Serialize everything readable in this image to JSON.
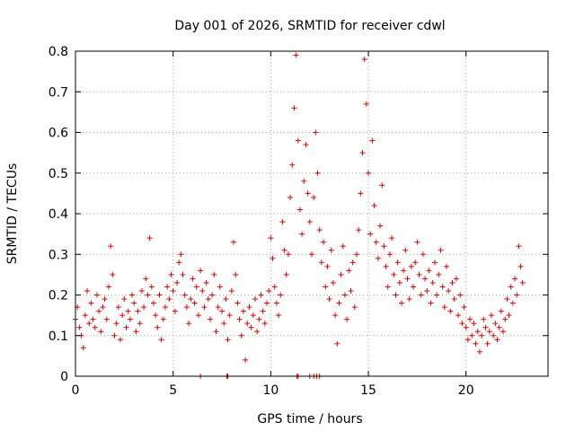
{
  "chart_data": {
    "type": "scatter",
    "title": "Day 001 of 2026, SRMTID for receiver cdwl",
    "xlabel": "GPS time / hours",
    "ylabel": "SRMTID / TECUs",
    "xlim": [
      0,
      24.2
    ],
    "ylim": [
      0,
      0.8
    ],
    "x_ticks": [
      0,
      5,
      10,
      15,
      20
    ],
    "x_tick_labels": [
      "0",
      "5",
      "10",
      "15",
      "20"
    ],
    "y_ticks": [
      0,
      0.1,
      0.2,
      0.3,
      0.4,
      0.5,
      0.6,
      0.7,
      0.8
    ],
    "y_tick_labels": [
      "0",
      "0.1",
      "0.2",
      "0.3",
      "0.4",
      "0.5",
      "0.6",
      "0.7",
      "0.8"
    ],
    "grid": true,
    "marker": "+",
    "color": "#e00000",
    "series": [
      {
        "name": "SRMTID",
        "points": [
          [
            0.0,
            0.14
          ],
          [
            0.1,
            0.17
          ],
          [
            0.2,
            0.12
          ],
          [
            0.3,
            0.1
          ],
          [
            0.4,
            0.07
          ],
          [
            0.5,
            0.15
          ],
          [
            0.6,
            0.21
          ],
          [
            0.7,
            0.13
          ],
          [
            0.8,
            0.18
          ],
          [
            0.9,
            0.14
          ],
          [
            1.0,
            0.12
          ],
          [
            1.1,
            0.2
          ],
          [
            1.2,
            0.16
          ],
          [
            1.3,
            0.11
          ],
          [
            1.4,
            0.17
          ],
          [
            1.5,
            0.19
          ],
          [
            1.6,
            0.14
          ],
          [
            1.7,
            0.22
          ],
          [
            1.8,
            0.32
          ],
          [
            1.9,
            0.25
          ],
          [
            2.0,
            0.1
          ],
          [
            2.1,
            0.13
          ],
          [
            2.2,
            0.17
          ],
          [
            2.3,
            0.09
          ],
          [
            2.4,
            0.15
          ],
          [
            2.5,
            0.19
          ],
          [
            2.6,
            0.12
          ],
          [
            2.7,
            0.16
          ],
          [
            2.8,
            0.14
          ],
          [
            2.9,
            0.2
          ],
          [
            3.0,
            0.18
          ],
          [
            3.1,
            0.11
          ],
          [
            3.2,
            0.16
          ],
          [
            3.3,
            0.13
          ],
          [
            3.4,
            0.21
          ],
          [
            3.5,
            0.17
          ],
          [
            3.6,
            0.24
          ],
          [
            3.7,
            0.2
          ],
          [
            3.8,
            0.34
          ],
          [
            3.9,
            0.22
          ],
          [
            4.0,
            0.18
          ],
          [
            4.1,
            0.15
          ],
          [
            4.2,
            0.12
          ],
          [
            4.3,
            0.2
          ],
          [
            4.4,
            0.09
          ],
          [
            4.5,
            0.14
          ],
          [
            4.6,
            0.17
          ],
          [
            4.7,
            0.22
          ],
          [
            4.8,
            0.19
          ],
          [
            4.9,
            0.25
          ],
          [
            5.0,
            0.21
          ],
          [
            5.1,
            0.16
          ],
          [
            5.2,
            0.23
          ],
          [
            5.3,
            0.28
          ],
          [
            5.4,
            0.3
          ],
          [
            5.5,
            0.25
          ],
          [
            5.6,
            0.2
          ],
          [
            5.7,
            0.17
          ],
          [
            5.8,
            0.13
          ],
          [
            5.9,
            0.19
          ],
          [
            6.0,
            0.24
          ],
          [
            6.1,
            0.18
          ],
          [
            6.2,
            0.22
          ],
          [
            6.3,
            0.15
          ],
          [
            6.4,
            0.26
          ],
          [
            6.5,
            0.21
          ],
          [
            6.6,
            0.17
          ],
          [
            6.7,
            0.23
          ],
          [
            6.8,
            0.19
          ],
          [
            6.9,
            0.14
          ],
          [
            7.0,
            0.2
          ],
          [
            7.1,
            0.25
          ],
          [
            7.2,
            0.11
          ],
          [
            7.3,
            0.17
          ],
          [
            7.4,
            0.22
          ],
          [
            7.5,
            0.16
          ],
          [
            7.6,
            0.13
          ],
          [
            7.7,
            0.19
          ],
          [
            7.8,
            0.09
          ],
          [
            7.9,
            0.15
          ],
          [
            8.0,
            0.21
          ],
          [
            8.1,
            0.33
          ],
          [
            8.2,
            0.25
          ],
          [
            8.3,
            0.18
          ],
          [
            8.4,
            0.14
          ],
          [
            8.5,
            0.1
          ],
          [
            8.6,
            0.16
          ],
          [
            8.7,
            0.04
          ],
          [
            8.8,
            0.13
          ],
          [
            8.9,
            0.17
          ],
          [
            9.0,
            0.12
          ],
          [
            9.1,
            0.15
          ],
          [
            9.2,
            0.19
          ],
          [
            9.3,
            0.11
          ],
          [
            9.4,
            0.14
          ],
          [
            9.5,
            0.2
          ],
          [
            9.6,
            0.16
          ],
          [
            9.7,
            0.13
          ],
          [
            9.8,
            0.18
          ],
          [
            9.9,
            0.21
          ],
          [
            10.0,
            0.34
          ],
          [
            10.1,
            0.29
          ],
          [
            10.2,
            0.22
          ],
          [
            10.3,
            0.18
          ],
          [
            10.4,
            0.15
          ],
          [
            10.5,
            0.2
          ],
          [
            10.6,
            0.38
          ],
          [
            10.7,
            0.31
          ],
          [
            10.8,
            0.25
          ],
          [
            10.9,
            0.3
          ],
          [
            11.0,
            0.44
          ],
          [
            11.1,
            0.52
          ],
          [
            11.2,
            0.66
          ],
          [
            11.3,
            0.79
          ],
          [
            11.4,
            0.58
          ],
          [
            11.5,
            0.41
          ],
          [
            11.6,
            0.35
          ],
          [
            11.7,
            0.48
          ],
          [
            11.8,
            0.57
          ],
          [
            11.9,
            0.45
          ],
          [
            12.0,
            0.38
          ],
          [
            12.1,
            0.3
          ],
          [
            12.2,
            0.44
          ],
          [
            12.3,
            0.6
          ],
          [
            12.4,
            0.5
          ],
          [
            12.5,
            0.36
          ],
          [
            12.6,
            0.28
          ],
          [
            12.7,
            0.33
          ],
          [
            12.8,
            0.22
          ],
          [
            12.9,
            0.27
          ],
          [
            13.0,
            0.19
          ],
          [
            13.1,
            0.31
          ],
          [
            13.2,
            0.23
          ],
          [
            13.3,
            0.15
          ],
          [
            13.4,
            0.08
          ],
          [
            13.5,
            0.18
          ],
          [
            13.6,
            0.25
          ],
          [
            13.7,
            0.32
          ],
          [
            13.8,
            0.2
          ],
          [
            13.9,
            0.14
          ],
          [
            14.0,
            0.26
          ],
          [
            14.1,
            0.21
          ],
          [
            14.2,
            0.28
          ],
          [
            14.3,
            0.17
          ],
          [
            14.4,
            0.3
          ],
          [
            14.5,
            0.36
          ],
          [
            14.6,
            0.45
          ],
          [
            14.7,
            0.55
          ],
          [
            14.8,
            0.78
          ],
          [
            14.9,
            0.67
          ],
          [
            15.0,
            0.5
          ],
          [
            15.1,
            0.35
          ],
          [
            15.2,
            0.58
          ],
          [
            15.3,
            0.42
          ],
          [
            15.4,
            0.33
          ],
          [
            15.5,
            0.29
          ],
          [
            15.6,
            0.37
          ],
          [
            15.7,
            0.47
          ],
          [
            15.8,
            0.32
          ],
          [
            15.9,
            0.27
          ],
          [
            16.0,
            0.22
          ],
          [
            16.1,
            0.3
          ],
          [
            16.2,
            0.34
          ],
          [
            16.3,
            0.25
          ],
          [
            16.4,
            0.2
          ],
          [
            16.5,
            0.28
          ],
          [
            16.6,
            0.23
          ],
          [
            16.7,
            0.18
          ],
          [
            16.8,
            0.26
          ],
          [
            16.9,
            0.31
          ],
          [
            17.0,
            0.24
          ],
          [
            17.1,
            0.19
          ],
          [
            17.2,
            0.27
          ],
          [
            17.3,
            0.22
          ],
          [
            17.4,
            0.28
          ],
          [
            17.5,
            0.33
          ],
          [
            17.6,
            0.25
          ],
          [
            17.7,
            0.2
          ],
          [
            17.8,
            0.3
          ],
          [
            17.9,
            0.24
          ],
          [
            18.0,
            0.21
          ],
          [
            18.1,
            0.26
          ],
          [
            18.2,
            0.18
          ],
          [
            18.3,
            0.23
          ],
          [
            18.4,
            0.28
          ],
          [
            18.5,
            0.2
          ],
          [
            18.6,
            0.25
          ],
          [
            18.7,
            0.31
          ],
          [
            18.8,
            0.22
          ],
          [
            18.9,
            0.17
          ],
          [
            19.0,
            0.27
          ],
          [
            19.1,
            0.21
          ],
          [
            19.2,
            0.16
          ],
          [
            19.3,
            0.23
          ],
          [
            19.4,
            0.19
          ],
          [
            19.5,
            0.24
          ],
          [
            19.6,
            0.15
          ],
          [
            19.7,
            0.2
          ],
          [
            19.8,
            0.13
          ],
          [
            19.9,
            0.17
          ],
          [
            20.0,
            0.12
          ],
          [
            20.1,
            0.09
          ],
          [
            20.2,
            0.14
          ],
          [
            20.3,
            0.1
          ],
          [
            20.4,
            0.13
          ],
          [
            20.5,
            0.08
          ],
          [
            20.6,
            0.11
          ],
          [
            20.7,
            0.06
          ],
          [
            20.8,
            0.1
          ],
          [
            20.9,
            0.14
          ],
          [
            21.0,
            0.12
          ],
          [
            21.1,
            0.08
          ],
          [
            21.2,
            0.11
          ],
          [
            21.3,
            0.15
          ],
          [
            21.4,
            0.1
          ],
          [
            21.5,
            0.13
          ],
          [
            21.6,
            0.09
          ],
          [
            21.7,
            0.12
          ],
          [
            21.8,
            0.16
          ],
          [
            21.9,
            0.11
          ],
          [
            22.0,
            0.14
          ],
          [
            22.1,
            0.19
          ],
          [
            22.2,
            0.15
          ],
          [
            22.3,
            0.22
          ],
          [
            22.4,
            0.18
          ],
          [
            22.5,
            0.24
          ],
          [
            22.6,
            0.2
          ],
          [
            22.7,
            0.32
          ],
          [
            22.8,
            0.27
          ],
          [
            22.9,
            0.23
          ],
          [
            7.75,
            0.0
          ],
          [
            7.8,
            0.0
          ],
          [
            11.35,
            0.0
          ],
          [
            11.4,
            0.0
          ],
          [
            12.0,
            0.0
          ],
          [
            12.2,
            0.0
          ],
          [
            12.35,
            0.0
          ],
          [
            12.5,
            0.0
          ],
          [
            6.4,
            0.0
          ]
        ]
      }
    ]
  }
}
